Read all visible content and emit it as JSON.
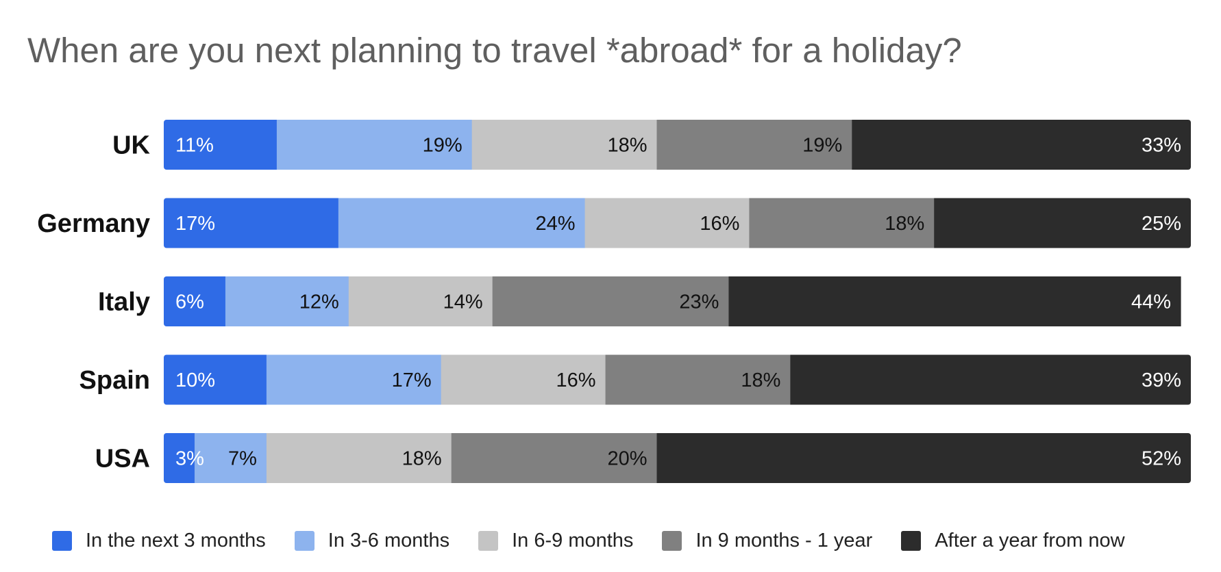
{
  "title": "When are you next planning to travel *abroad* for a holiday?",
  "chart_data": {
    "type": "bar",
    "orientation": "horizontal",
    "stacked": true,
    "title": "When are you next planning to travel *abroad* for a holiday?",
    "categories": [
      "UK",
      "Germany",
      "Italy",
      "Spain",
      "USA"
    ],
    "series": [
      {
        "name": "In the next 3 months",
        "color": "#2f6be6",
        "label_color": "#ffffff",
        "values": [
          11,
          17,
          6,
          10,
          3
        ]
      },
      {
        "name": "In 3-6 months",
        "color": "#8db3ee",
        "label_color": "#111111",
        "values": [
          19,
          24,
          12,
          17,
          7
        ]
      },
      {
        "name": "In 6-9 months",
        "color": "#c4c4c4",
        "label_color": "#111111",
        "values": [
          18,
          16,
          14,
          16,
          18
        ]
      },
      {
        "name": "In 9 months - 1 year",
        "color": "#808080",
        "label_color": "#111111",
        "values": [
          19,
          18,
          23,
          18,
          20
        ]
      },
      {
        "name": "After a year from now",
        "color": "#2c2c2c",
        "label_color": "#ffffff",
        "values": [
          33,
          25,
          44,
          39,
          52
        ]
      }
    ],
    "value_labels": [
      [
        "11%",
        "17%",
        "6%",
        "10%",
        "3%"
      ],
      [
        "19%",
        "24%",
        "12%",
        "17%",
        "7%"
      ],
      [
        "18%",
        "16%",
        "14%",
        "16%",
        "18%"
      ],
      [
        "19%",
        "18%",
        "23%",
        "18%",
        "20%"
      ],
      [
        "33%",
        "25%",
        "44%",
        "39%",
        "52%"
      ]
    ],
    "xlim": [
      0,
      100
    ],
    "grid": false,
    "legend_position": "bottom"
  }
}
